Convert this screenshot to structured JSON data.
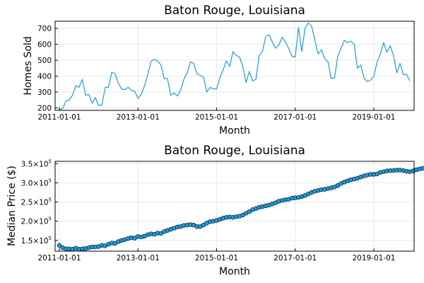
{
  "chart_data": [
    {
      "type": "line",
      "title": "Baton Rouge, Louisiana",
      "xlabel": "Month",
      "ylabel": "Homes Sold",
      "x_ticks": [
        "2011-01-01",
        "2013-01-01",
        "2015-01-01",
        "2017-01-01",
        "2019-01-01"
      ],
      "y_ticks": [
        "200",
        "300",
        "400",
        "500",
        "600",
        "700"
      ],
      "xlim": [
        "2011-01-01",
        "2019-12-01"
      ],
      "ylim": [
        185,
        745
      ],
      "grid": true,
      "color": "#1f9bdd",
      "series": [
        {
          "x": [
            "2011-01-01",
            "2011-02-01",
            "2011-03-01",
            "2011-04-01",
            "2011-05-01",
            "2011-06-01",
            "2011-07-01",
            "2011-08-01",
            "2011-09-01",
            "2011-10-01",
            "2011-11-01",
            "2011-12-01",
            "2012-01-01",
            "2012-02-01",
            "2012-03-01",
            "2012-04-01",
            "2012-05-01",
            "2012-06-01",
            "2012-07-01",
            "2012-08-01",
            "2012-09-01",
            "2012-10-01",
            "2012-11-01",
            "2012-12-01",
            "2013-01-01",
            "2013-02-01",
            "2013-03-01",
            "2013-04-01",
            "2013-05-01",
            "2013-06-01",
            "2013-07-01",
            "2013-08-01",
            "2013-09-01",
            "2013-10-01",
            "2013-11-01",
            "2013-12-01",
            "2014-01-01",
            "2014-02-01",
            "2014-03-01",
            "2014-04-01",
            "2014-05-01",
            "2014-06-01",
            "2014-07-01",
            "2014-08-01",
            "2014-09-01",
            "2014-10-01",
            "2014-11-01",
            "2014-12-01",
            "2015-01-01",
            "2015-02-01",
            "2015-03-01",
            "2015-04-01",
            "2015-05-01",
            "2015-06-01",
            "2015-07-01",
            "2015-08-01",
            "2015-09-01",
            "2015-10-01",
            "2015-11-01",
            "2015-12-01",
            "2016-01-01",
            "2016-02-01",
            "2016-03-01",
            "2016-04-01",
            "2016-05-01",
            "2016-06-01",
            "2016-07-01",
            "2016-08-01",
            "2016-09-01",
            "2016-10-01",
            "2016-11-01",
            "2016-12-01",
            "2017-01-01",
            "2017-02-01",
            "2017-03-01",
            "2017-04-01",
            "2017-05-01",
            "2017-06-01",
            "2017-07-01",
            "2017-08-01",
            "2017-09-01",
            "2017-10-01",
            "2017-11-01",
            "2017-12-01",
            "2018-01-01",
            "2018-02-01",
            "2018-03-01",
            "2018-04-01",
            "2018-05-01",
            "2018-06-01",
            "2018-07-01",
            "2018-08-01",
            "2018-09-01",
            "2018-10-01",
            "2018-11-01",
            "2018-12-01",
            "2019-01-01",
            "2019-02-01",
            "2019-03-01",
            "2019-04-01",
            "2019-05-01",
            "2019-06-01",
            "2019-07-01",
            "2019-08-01",
            "2019-09-01",
            "2019-10-01",
            "2019-11-01",
            "2019-12-01"
          ],
          "values": [
            190,
            195,
            245,
            250,
            280,
            340,
            330,
            380,
            280,
            285,
            230,
            265,
            215,
            220,
            330,
            330,
            425,
            415,
            355,
            320,
            315,
            330,
            310,
            305,
            260,
            285,
            340,
            410,
            495,
            505,
            495,
            470,
            385,
            385,
            280,
            295,
            275,
            310,
            380,
            420,
            490,
            480,
            415,
            405,
            395,
            300,
            330,
            320,
            320,
            390,
            440,
            495,
            460,
            555,
            530,
            520,
            460,
            360,
            430,
            370,
            380,
            530,
            555,
            650,
            660,
            615,
            575,
            595,
            645,
            615,
            575,
            525,
            520,
            705,
            555,
            700,
            735,
            715,
            625,
            540,
            565,
            510,
            490,
            385,
            390,
            525,
            575,
            625,
            610,
            620,
            600,
            450,
            470,
            390,
            365,
            375,
            400,
            490,
            540,
            610,
            550,
            590,
            530,
            420,
            480,
            410,
            410,
            370
          ]
        }
      ]
    },
    {
      "type": "scatter",
      "title": "Baton Rouge, Louisiana",
      "xlabel": "Month",
      "ylabel": "Median Price ($)",
      "x_ticks": [
        "2011-01-01",
        "2013-01-01",
        "2015-01-01",
        "2017-01-01",
        "2019-01-01"
      ],
      "y_ticks": [
        {
          "mantissa": "1.5",
          "base": "×10",
          "exp": "5",
          "value": 150000
        },
        {
          "mantissa": "2.0",
          "base": "×10",
          "exp": "5",
          "value": 200000
        },
        {
          "mantissa": "2.5",
          "base": "×10",
          "exp": "5",
          "value": 250000
        },
        {
          "mantissa": "3.0",
          "base": "×10",
          "exp": "5",
          "value": 300000
        },
        {
          "mantissa": "3.5",
          "base": "×10",
          "exp": "5",
          "value": 350000
        }
      ],
      "xlim": [
        "2011-01-01",
        "2019-12-01"
      ],
      "ylim": [
        122000,
        356000
      ],
      "grid": true,
      "color": "#1f9bdd",
      "series": [
        {
          "x_start": "2011-01-01",
          "step": "1 month",
          "values": [
            137000,
            131000,
            128000,
            128000,
            127000,
            130000,
            127000,
            128000,
            129000,
            131000,
            133000,
            133000,
            134000,
            137000,
            136000,
            140000,
            143000,
            142000,
            147000,
            150000,
            152000,
            155000,
            157000,
            156000,
            160000,
            159000,
            161000,
            165000,
            167000,
            166000,
            169000,
            168000,
            173000,
            176000,
            179000,
            182000,
            185000,
            186000,
            189000,
            190000,
            191000,
            190000,
            186000,
            186000,
            190000,
            195000,
            199000,
            200000,
            202000,
            205000,
            208000,
            210000,
            211000,
            210000,
            212000,
            213000,
            216000,
            221000,
            225000,
            230000,
            233000,
            236000,
            238000,
            240000,
            242000,
            245000,
            248000,
            252000,
            254000,
            256000,
            257000,
            260000,
            261000,
            262000,
            264000,
            267000,
            271000,
            275000,
            278000,
            280000,
            282000,
            283000,
            285000,
            287000,
            289000,
            293000,
            298000,
            302000,
            305000,
            308000,
            310000,
            312000,
            315000,
            318000,
            320000,
            322000,
            322000,
            323000,
            327000,
            329000,
            331000,
            332000,
            332000,
            333000,
            333000,
            332000,
            330000,
            329000,
            331000,
            334000,
            336000,
            338000,
            342000,
            347000
          ]
        }
      ]
    }
  ]
}
